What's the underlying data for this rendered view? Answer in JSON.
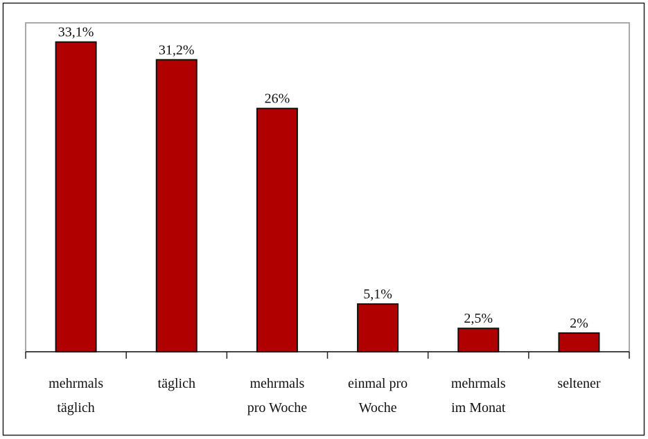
{
  "chart_data": {
    "type": "bar",
    "categories": [
      [
        "mehrmals",
        "täglich"
      ],
      [
        "täglich"
      ],
      [
        "mehrmals",
        "pro Woche"
      ],
      [
        "einmal pro",
        "Woche"
      ],
      [
        "mehrmals",
        "im Monat"
      ],
      [
        "seltener"
      ]
    ],
    "values": [
      33.1,
      31.2,
      26,
      5.1,
      2.5,
      2
    ],
    "value_labels": [
      "33,1%",
      "31,2%",
      "26%",
      "5,1%",
      "2,5%",
      "2%"
    ],
    "color": "#b00000",
    "ylim": [
      0,
      35
    ]
  }
}
